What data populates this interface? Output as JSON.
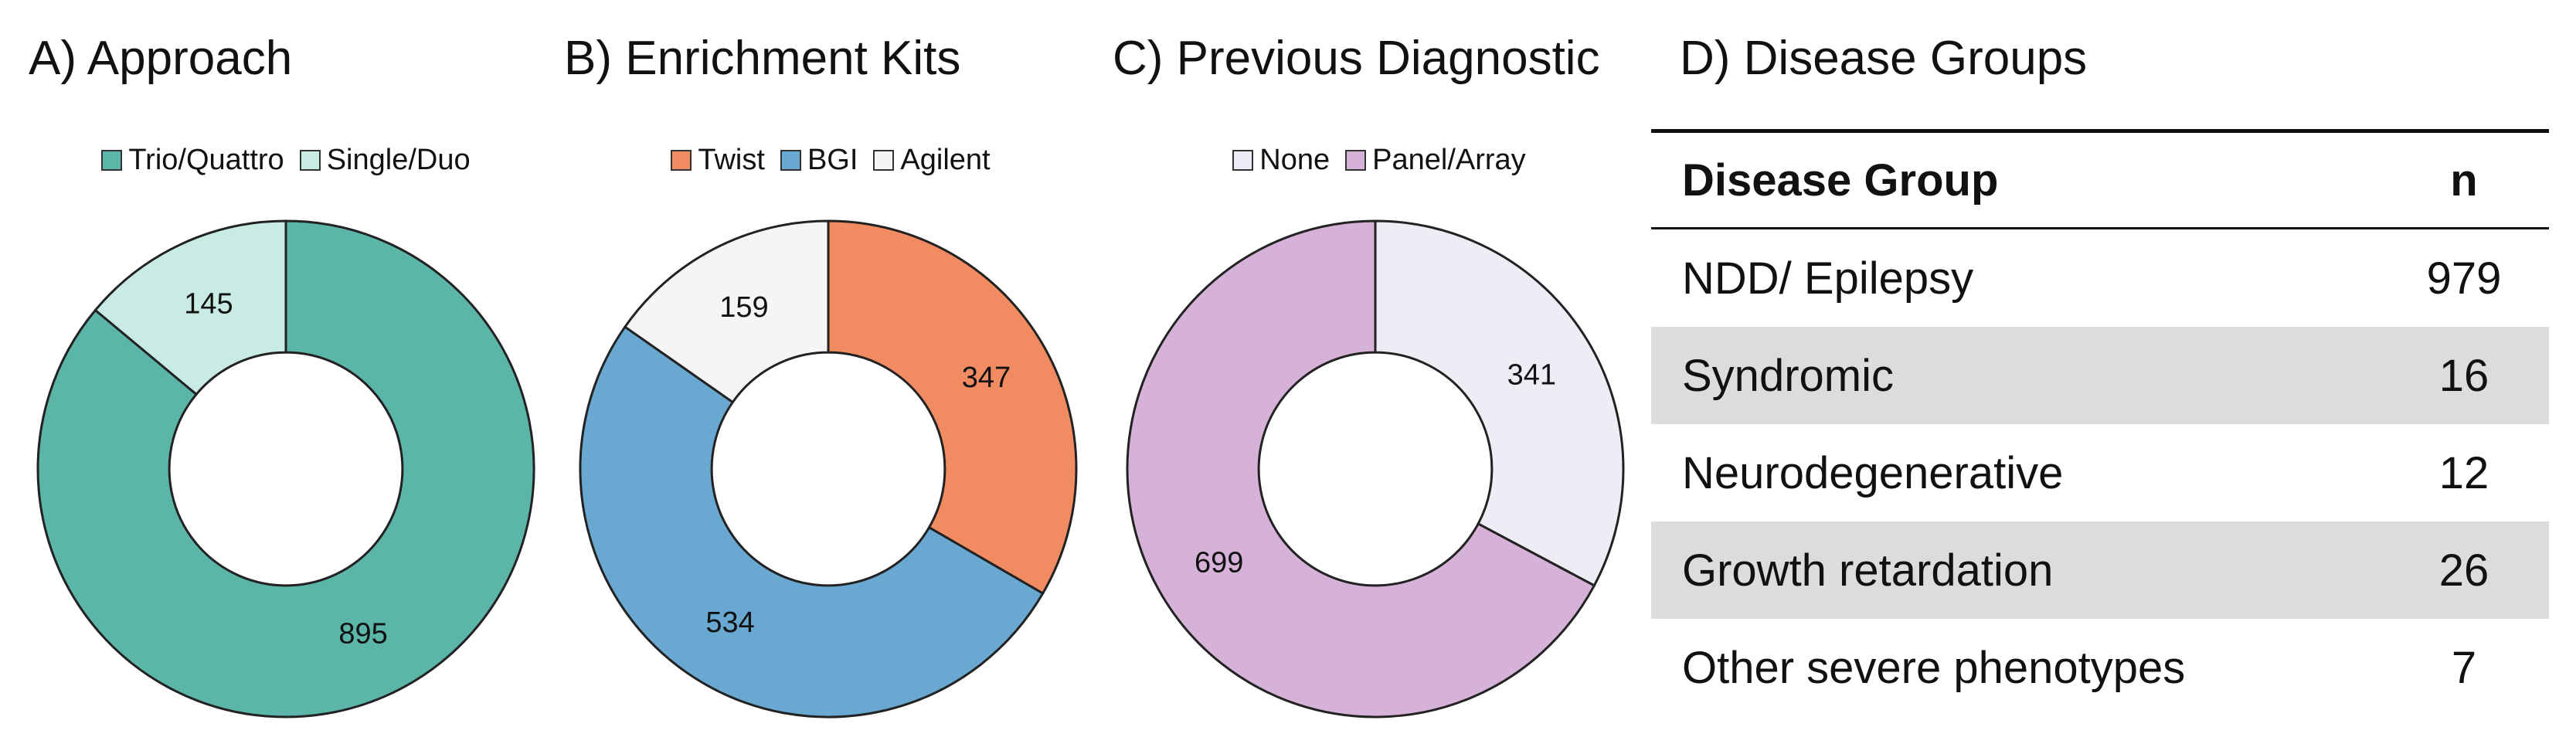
{
  "chart_data": [
    {
      "type": "pie",
      "variant": "donut",
      "title": "A) Approach",
      "legend_position": "top",
      "slices": [
        {
          "label": "Trio/Quattro",
          "value": 895,
          "color": "#5cb5a9"
        },
        {
          "label": "Single/Duo",
          "value": 145,
          "color": "#c8ebe3"
        }
      ]
    },
    {
      "type": "pie",
      "variant": "donut",
      "title": "B) Enrichment Kits",
      "legend_position": "top",
      "slices": [
        {
          "label": "Twist",
          "value": 347,
          "color": "#f08b62"
        },
        {
          "label": "BGI",
          "value": 534,
          "color": "#69a8d1"
        },
        {
          "label": "Agilent",
          "value": 159,
          "color": "#f5f5f5"
        }
      ]
    },
    {
      "type": "pie",
      "variant": "donut",
      "title": "C) Previous Diagnostic",
      "legend_position": "top",
      "slices": [
        {
          "label": "None",
          "value": 341,
          "color": "#f0ecf5"
        },
        {
          "label": "Panel/Array",
          "value": 699,
          "color": "#d6b2d8"
        }
      ]
    },
    {
      "type": "table",
      "title": "D) Disease Groups",
      "columns": [
        "Disease Group",
        "n"
      ],
      "rows": [
        {
          "name": "NDD/ Epilepsy",
          "n": "979"
        },
        {
          "name": "Syndromic",
          "n": "16"
        },
        {
          "name": "Neurodegenerative",
          "n": "12"
        },
        {
          "name": "Growth retardation",
          "n": "26"
        },
        {
          "name": "Other severe phenotypes",
          "n": "7"
        }
      ]
    }
  ]
}
